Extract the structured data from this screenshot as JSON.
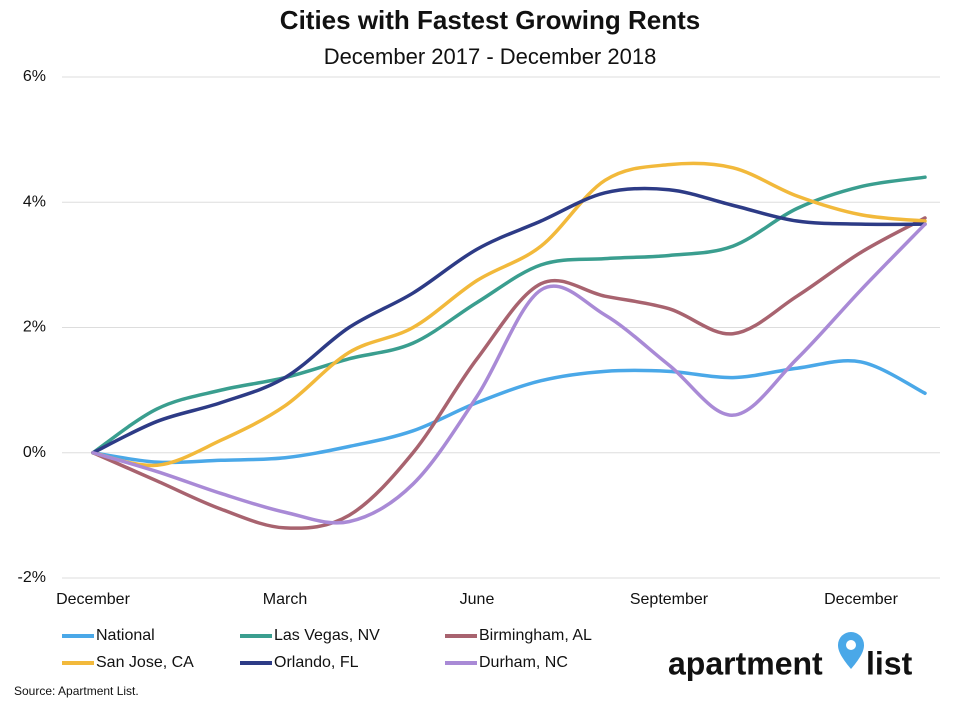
{
  "chart_data": {
    "type": "line",
    "title": "Cities with Fastest Growing Rents",
    "subtitle": "December 2017 - December 2018",
    "categories": [
      "December",
      null,
      null,
      "March",
      null,
      null,
      "June",
      null,
      null,
      "September",
      null,
      null,
      "December",
      null
    ],
    "series": [
      {
        "name": "National",
        "color": "#4aa8e8",
        "values": [
          0,
          -0.15,
          -0.12,
          -0.08,
          0.1,
          0.35,
          0.8,
          1.15,
          1.3,
          1.3,
          1.2,
          1.35,
          1.45,
          0.95
        ]
      },
      {
        "name": "Las Vegas, NV",
        "color": "#3a9e8f",
        "values": [
          0,
          0.7,
          1.0,
          1.2,
          1.5,
          1.75,
          2.4,
          3.0,
          3.1,
          3.15,
          3.3,
          3.9,
          4.25,
          4.4
        ]
      },
      {
        "name": "Birmingham, AL",
        "color": "#a8636f",
        "values": [
          0,
          -0.45,
          -0.9,
          -1.2,
          -1.0,
          0.0,
          1.5,
          2.7,
          2.5,
          2.3,
          1.9,
          2.5,
          3.2,
          3.75
        ]
      },
      {
        "name": "San Jose, CA",
        "color": "#f2b93b",
        "values": [
          0,
          -0.2,
          0.2,
          0.75,
          1.6,
          2.0,
          2.75,
          3.3,
          4.35,
          4.6,
          4.55,
          4.1,
          3.8,
          3.7
        ]
      },
      {
        "name": "Orlando, FL",
        "color": "#2d3b86",
        "values": [
          0,
          0.5,
          0.8,
          1.2,
          2.0,
          2.55,
          3.25,
          3.7,
          4.15,
          4.2,
          3.95,
          3.7,
          3.65,
          3.65
        ]
      },
      {
        "name": "Durham, NC",
        "color": "#a98ad6",
        "values": [
          0,
          -0.3,
          -0.65,
          -0.95,
          -1.1,
          -0.5,
          0.9,
          2.6,
          2.2,
          1.4,
          0.6,
          1.5,
          2.6,
          3.65
        ]
      }
    ],
    "ylim": [
      -2,
      6
    ],
    "yticks": [
      {
        "value": -2,
        "label": "-2%"
      },
      {
        "value": 0,
        "label": "0%"
      },
      {
        "value": 2,
        "label": "2%"
      },
      {
        "value": 4,
        "label": "4%"
      },
      {
        "value": 6,
        "label": "6%"
      }
    ],
    "grid": true,
    "legend": "bottom",
    "source": "Source: Apartment List.",
    "logo": {
      "left": "apartment",
      "right": "list"
    }
  }
}
